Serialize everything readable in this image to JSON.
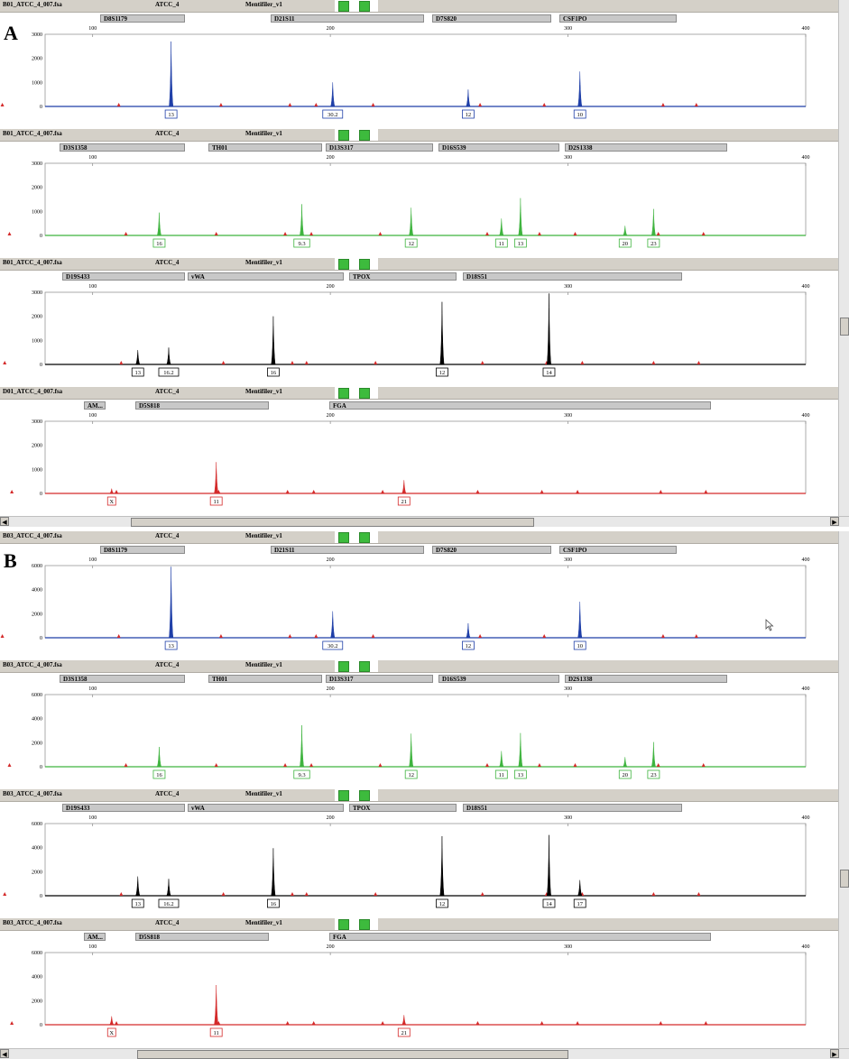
{
  "sections": [
    {
      "letter": "A",
      "panels": [
        {
          "file": "B01_ATCC_4_007.fsa",
          "sample": "ATCC_4",
          "panel_name": "Mentifiler_v1",
          "color": "#1f3fa8",
          "ymax": 3000,
          "yticks": [
            "3000",
            "2000",
            "1000",
            "0"
          ],
          "loci": [
            {
              "label": "D8S1179"
            },
            {
              "label": "D21S11"
            },
            {
              "label": "D7S820"
            },
            {
              "label": "CSF1PO"
            }
          ],
          "peaks": [
            {
              "x": 133,
              "h": 2700,
              "label": "13"
            },
            {
              "x": 201,
              "h": 1000,
              "label": "30.2"
            },
            {
              "x": 258,
              "h": 700,
              "label": "12"
            },
            {
              "x": 305,
              "h": 1450,
              "label": "10"
            }
          ]
        },
        {
          "file": "B01_ATCC_4_007.fsa",
          "sample": "ATCC_4",
          "panel_name": "Mentifiler_v1",
          "color": "#3fb43f",
          "ymax": 3000,
          "yticks": [
            "3000",
            "2000",
            "1000",
            "0"
          ],
          "loci": [
            {
              "label": "D3S1358"
            },
            {
              "label": "TH01"
            },
            {
              "label": "D13S317"
            },
            {
              "label": "D16S539"
            },
            {
              "label": "D2S1338"
            }
          ],
          "peaks": [
            {
              "x": 128,
              "h": 950,
              "label": "16"
            },
            {
              "x": 188,
              "h": 1300,
              "label": "9.3"
            },
            {
              "x": 234,
              "h": 1150,
              "label": "12"
            },
            {
              "x": 272,
              "h": 700,
              "label": "11"
            },
            {
              "x": 280,
              "h": 1550,
              "label": "13"
            },
            {
              "x": 324,
              "h": 400,
              "label": "20"
            },
            {
              "x": 336,
              "h": 1100,
              "label": "23"
            }
          ]
        },
        {
          "file": "B01_ATCC_4_007.fsa",
          "sample": "ATCC_4",
          "panel_name": "Mentifiler_v1",
          "color": "#000000",
          "ymax": 3000,
          "yticks": [
            "3000",
            "2000",
            "1000",
            "0"
          ],
          "loci": [
            {
              "label": "D19S433"
            },
            {
              "label": "vWA"
            },
            {
              "label": "TPOX"
            },
            {
              "label": "D18S51"
            }
          ],
          "peaks": [
            {
              "x": 119,
              "h": 600,
              "label": "13"
            },
            {
              "x": 132,
              "h": 700,
              "label": "16.2"
            },
            {
              "x": 176,
              "h": 2000,
              "label": "16"
            },
            {
              "x": 247,
              "h": 2600,
              "label": "12"
            },
            {
              "x": 292,
              "h": 2950,
              "label": "14"
            }
          ]
        },
        {
          "file": "D01_ATCC_4_007.fsa",
          "sample": "ATCC_4",
          "panel_name": "Mentifiler_v1",
          "color": "#d42a2a",
          "ymax": 3000,
          "yticks": [
            "3000",
            "2000",
            "1000",
            "0"
          ],
          "loci": [
            {
              "label": "AM..."
            },
            {
              "label": "D5S818"
            },
            {
              "label": "FGA"
            }
          ],
          "peaks": [
            {
              "x": 108,
              "h": 200,
              "label": "X"
            },
            {
              "x": 152,
              "h": 1300,
              "label": "11"
            },
            {
              "x": 231,
              "h": 550,
              "label": "21"
            }
          ]
        }
      ]
    },
    {
      "letter": "B",
      "panels": [
        {
          "file": "B03_ATCC_4_007.fsa",
          "sample": "ATCC_4",
          "panel_name": "Mentifiler_v1",
          "color": "#1f3fa8",
          "ymax": 6000,
          "yticks": [
            "6000",
            "4000",
            "2000",
            "0"
          ],
          "loci": [
            {
              "label": "D8S1179"
            },
            {
              "label": "D21S11"
            },
            {
              "label": "D7S820"
            },
            {
              "label": "CSF1PO"
            }
          ],
          "peaks": [
            {
              "x": 133,
              "h": 5900,
              "label": "13"
            },
            {
              "x": 201,
              "h": 2200,
              "label": "30.2"
            },
            {
              "x": 258,
              "h": 1200,
              "label": "12"
            },
            {
              "x": 305,
              "h": 3000,
              "label": "10"
            }
          ]
        },
        {
          "file": "B03_ATCC_4_007.fsa",
          "sample": "ATCC_4",
          "panel_name": "Mentifiler_v1",
          "color": "#3fb43f",
          "ymax": 6000,
          "yticks": [
            "6000",
            "4000",
            "2000",
            "0"
          ],
          "loci": [
            {
              "label": "D3S1358"
            },
            {
              "label": "TH01"
            },
            {
              "label": "D13S317"
            },
            {
              "label": "D16S539"
            },
            {
              "label": "D2S1338"
            }
          ],
          "peaks": [
            {
              "x": 128,
              "h": 1650,
              "label": "16"
            },
            {
              "x": 188,
              "h": 3450,
              "label": "9.3"
            },
            {
              "x": 234,
              "h": 2750,
              "label": "12"
            },
            {
              "x": 272,
              "h": 1300,
              "label": "11"
            },
            {
              "x": 280,
              "h": 2800,
              "label": "13"
            },
            {
              "x": 324,
              "h": 800,
              "label": "20"
            },
            {
              "x": 336,
              "h": 2050,
              "label": "23"
            }
          ]
        },
        {
          "file": "B03_ATCC_4_007.fsa",
          "sample": "ATCC_4",
          "panel_name": "Mentifiler_v1",
          "color": "#000000",
          "ymax": 6000,
          "yticks": [
            "6000",
            "4000",
            "2000",
            "0"
          ],
          "loci": [
            {
              "label": "D19S433"
            },
            {
              "label": "vWA"
            },
            {
              "label": "TPOX"
            },
            {
              "label": "D18S51"
            }
          ],
          "peaks": [
            {
              "x": 119,
              "h": 1600,
              "label": "13"
            },
            {
              "x": 132,
              "h": 1400,
              "label": "16.2"
            },
            {
              "x": 176,
              "h": 3950,
              "label": "16"
            },
            {
              "x": 247,
              "h": 4950,
              "label": "12"
            },
            {
              "x": 292,
              "h": 5050,
              "label": "14"
            },
            {
              "x": 305,
              "h": 1300,
              "label": "17"
            }
          ]
        },
        {
          "file": "B03_ATCC_4_007.fsa",
          "sample": "ATCC_4",
          "panel_name": "Mentifiler_v1",
          "color": "#d42a2a",
          "ymax": 6000,
          "yticks": [
            "6000",
            "4000",
            "2000",
            "0"
          ],
          "loci": [
            {
              "label": "AM..."
            },
            {
              "label": "D5S818"
            },
            {
              "label": "FGA"
            }
          ],
          "peaks": [
            {
              "x": 108,
              "h": 700,
              "label": "X"
            },
            {
              "x": 152,
              "h": 3300,
              "label": "11"
            },
            {
              "x": 231,
              "h": 800,
              "label": "21"
            }
          ]
        }
      ]
    }
  ],
  "xaxis_ticks": [
    "100",
    "200",
    "300",
    "400"
  ],
  "xaxis_range": [
    80,
    400
  ]
}
